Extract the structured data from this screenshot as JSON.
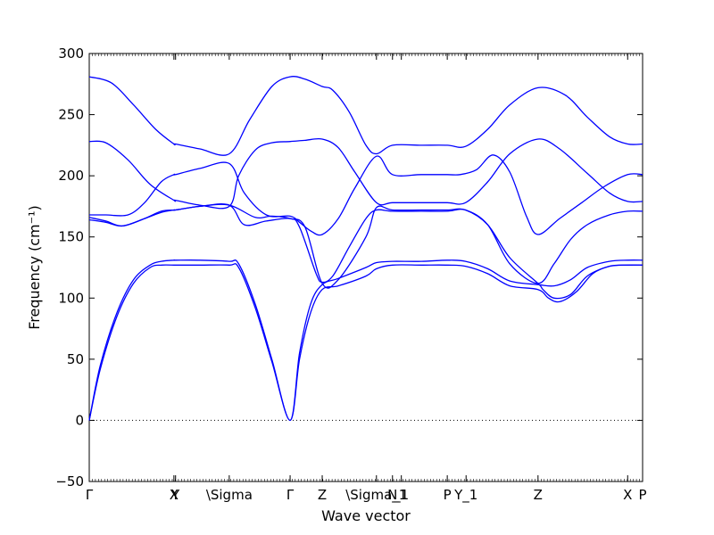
{
  "chart_data": {
    "type": "line",
    "title": "",
    "xlabel": "Wave vector",
    "ylabel": "Frequency (cm⁻¹)",
    "ylim": [
      -50,
      300
    ],
    "yticks": [
      -50,
      0,
      50,
      100,
      150,
      200,
      250,
      300
    ],
    "xlim": [
      0,
      1
    ],
    "xticks": [
      {
        "label": "Γ",
        "x": 0.0
      },
      {
        "label": "X",
        "x": 0.153
      },
      {
        "label": "Y",
        "x": 0.156
      },
      {
        "label": "\\Sigma",
        "x": 0.253
      },
      {
        "label": "Γ",
        "x": 0.363
      },
      {
        "label": "Z",
        "x": 0.421
      },
      {
        "label": "\\Sigma_1",
        "x": 0.519
      },
      {
        "label": "N",
        "x": 0.548
      },
      {
        "label": "_1",
        "x": 0.564
      },
      {
        "label": "P",
        "x": 0.647
      },
      {
        "label": "Y_1",
        "x": 0.681
      },
      {
        "label": "Z",
        "x": 0.811
      },
      {
        "label": "X",
        "x": 0.973
      },
      {
        "label": "P",
        "x": 1.0
      }
    ],
    "zero_line": {
      "y": 0,
      "style": "dotted"
    },
    "line_color": "#0000ff",
    "series": [
      {
        "x": [
          0,
          0.04,
          0.08,
          0.12,
          0.153,
          0.156,
          0.2,
          0.253,
          0.29,
          0.33,
          0.363,
          0.39,
          0.421,
          0.44,
          0.47,
          0.5,
          0.519,
          0.548,
          0.6,
          0.647,
          0.68,
          0.72,
          0.76,
          0.811,
          0.86,
          0.9,
          0.94,
          0.973,
          1.0
        ],
        "y": [
          281,
          276,
          258,
          238,
          226,
          226,
          222,
          218,
          246,
          273,
          281,
          279,
          273,
          270,
          252,
          225,
          218,
          225,
          225,
          225,
          224,
          238,
          258,
          272,
          266,
          248,
          232,
          226,
          226
        ]
      },
      {
        "x": [
          0,
          0.03,
          0.07,
          0.11,
          0.153,
          0.156,
          0.2,
          0.253,
          0.27,
          0.3,
          0.33,
          0.363,
          0.39,
          0.421,
          0.45,
          0.48,
          0.519,
          0.548,
          0.6,
          0.647,
          0.68,
          0.72,
          0.76,
          0.811,
          0.85,
          0.9,
          0.94,
          0.973,
          1.0
        ],
        "y": [
          228,
          227,
          213,
          193,
          180,
          180,
          176,
          175,
          200,
          221,
          227,
          228,
          229,
          230,
          223,
          203,
          178,
          178,
          178,
          178,
          178,
          195,
          218,
          230,
          222,
          202,
          186,
          179,
          179
        ]
      },
      {
        "x": [
          0,
          0.03,
          0.07,
          0.1,
          0.13,
          0.153,
          0.156,
          0.2,
          0.253,
          0.28,
          0.32,
          0.363,
          0.38,
          0.4,
          0.421,
          0.45,
          0.48,
          0.519,
          0.548,
          0.6,
          0.647,
          0.67,
          0.7,
          0.73,
          0.76,
          0.79,
          0.811,
          0.85,
          0.89,
          0.93,
          0.973,
          1.0
        ],
        "y": [
          168,
          168,
          168,
          178,
          195,
          201,
          201,
          206,
          210,
          186,
          168,
          167,
          162,
          155,
          152,
          165,
          190,
          216,
          201,
          201,
          201,
          201,
          205,
          217,
          203,
          167,
          152,
          165,
          178,
          191,
          201,
          201
        ]
      },
      {
        "x": [
          0,
          0.03,
          0.06,
          0.1,
          0.13,
          0.153,
          0.156,
          0.2,
          0.253,
          0.28,
          0.32,
          0.363,
          0.38,
          0.41,
          0.421,
          0.44,
          0.47,
          0.5,
          0.519,
          0.548,
          0.6,
          0.647,
          0.68,
          0.72,
          0.76,
          0.811,
          0.84,
          0.87,
          0.9,
          0.94,
          0.973,
          1.0
        ],
        "y": [
          166,
          163,
          159,
          165,
          171,
          172,
          172,
          175,
          176,
          160,
          163,
          165,
          158,
          120,
          113,
          118,
          142,
          165,
          172,
          171,
          171,
          171,
          172,
          160,
          128,
          112,
          128,
          148,
          160,
          168,
          171,
          171
        ]
      },
      {
        "x": [
          0,
          0.03,
          0.06,
          0.1,
          0.13,
          0.153,
          0.156,
          0.2,
          0.253,
          0.3,
          0.33,
          0.363,
          0.39,
          0.421,
          0.45,
          0.5,
          0.519,
          0.548,
          0.6,
          0.647,
          0.68,
          0.72,
          0.76,
          0.811,
          0.82,
          0.84,
          0.87,
          0.9,
          0.94,
          0.973,
          1.0
        ],
        "y": [
          164,
          162,
          159,
          165,
          170,
          172,
          172,
          175,
          176,
          166,
          167,
          165,
          158,
          112,
          115,
          150,
          174,
          172,
          172,
          172,
          172,
          160,
          133,
          112,
          107,
          100,
          103,
          118,
          126,
          127,
          127
        ]
      },
      {
        "x": [
          0,
          0.02,
          0.05,
          0.08,
          0.11,
          0.13,
          0.153,
          0.156,
          0.2,
          0.253,
          0.27,
          0.3,
          0.33,
          0.363,
          0.38,
          0.4,
          0.421,
          0.45,
          0.5,
          0.519,
          0.548,
          0.6,
          0.647,
          0.68,
          0.72,
          0.76,
          0.811,
          0.84,
          0.87,
          0.9,
          0.94,
          0.973,
          1.0
        ],
        "y": [
          0,
          45,
          88,
          115,
          127,
          130,
          131,
          131,
          131,
          130,
          128,
          95,
          50,
          0,
          55,
          95,
          111,
          116,
          125,
          129,
          130,
          130,
          131,
          130,
          124,
          114,
          111,
          110,
          115,
          125,
          130,
          131,
          131
        ]
      },
      {
        "x": [
          0,
          0.02,
          0.05,
          0.08,
          0.11,
          0.13,
          0.153,
          0.156,
          0.2,
          0.253,
          0.27,
          0.3,
          0.33,
          0.363,
          0.38,
          0.4,
          0.421,
          0.45,
          0.5,
          0.519,
          0.548,
          0.6,
          0.647,
          0.68,
          0.72,
          0.76,
          0.811,
          0.83,
          0.85,
          0.88,
          0.91,
          0.94,
          0.973,
          1.0
        ],
        "y": [
          0,
          42,
          85,
          112,
          125,
          127,
          127,
          127,
          127,
          127,
          125,
          92,
          48,
          0,
          50,
          88,
          107,
          110,
          118,
          124,
          127,
          127,
          127,
          126,
          120,
          110,
          107,
          100,
          97,
          105,
          120,
          126,
          127,
          127
        ]
      }
    ]
  }
}
